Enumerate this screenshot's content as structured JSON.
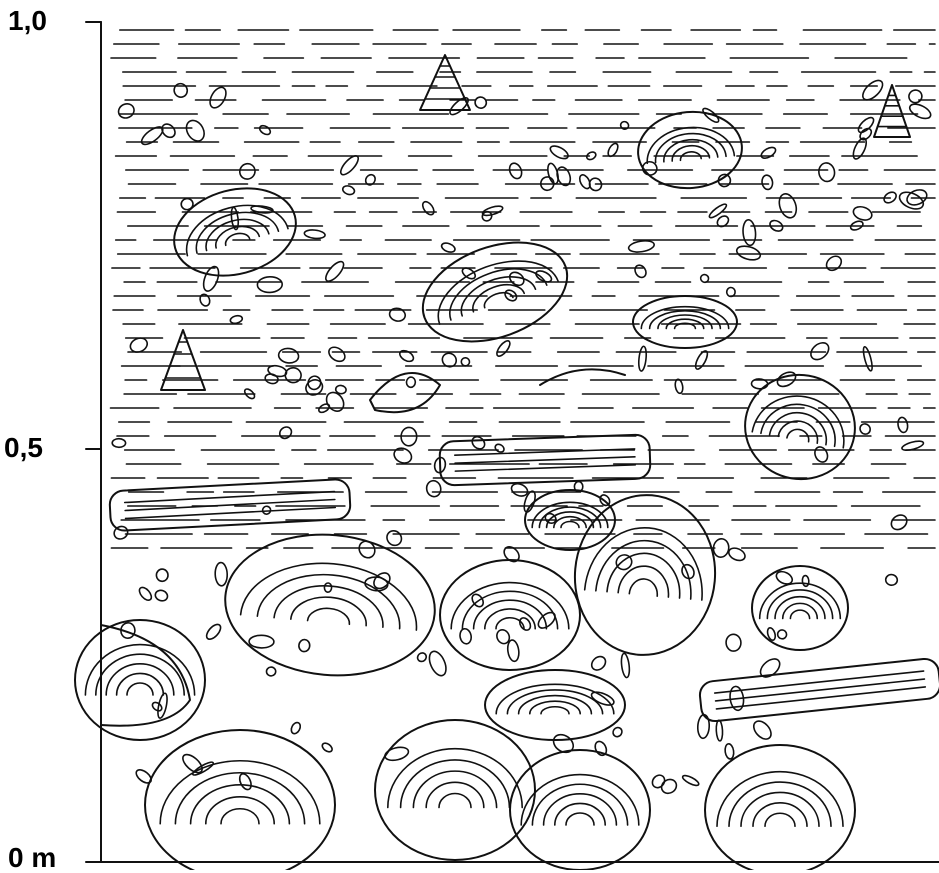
{
  "scale": {
    "top_label": "1,0",
    "mid_label": "0,5",
    "bottom_label": "0 m"
  },
  "section": {
    "depicts": [
      "horizontal-lamination",
      "oyster-shells",
      "gastropods",
      "burrow-fragments"
    ]
  }
}
